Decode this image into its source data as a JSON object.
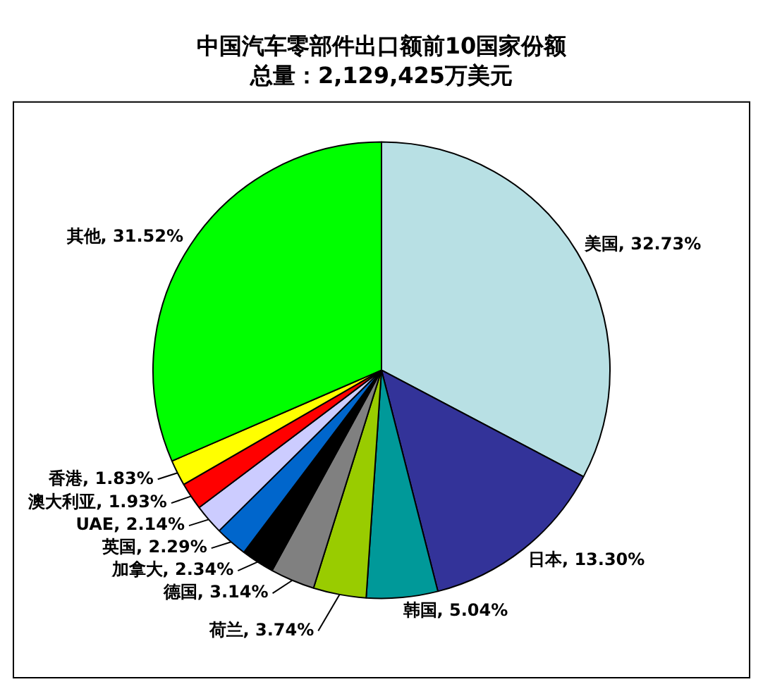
{
  "chart_data": {
    "type": "pie",
    "title": "中国汽车零部件出口额前10国家份额",
    "subtitle": "总量：2,129,425万美元",
    "categories": [
      "美国",
      "日本",
      "韩国",
      "荷兰",
      "德国",
      "加拿大",
      "英国",
      "UAE",
      "澳大利亚",
      "香港",
      "其他"
    ],
    "values": [
      32.73,
      13.3,
      5.04,
      3.74,
      3.14,
      2.34,
      2.29,
      2.14,
      1.93,
      1.83,
      31.52
    ],
    "value_labels": [
      "32.73%",
      "13.30%",
      "5.04%",
      "3.74%",
      "3.14%",
      "2.34%",
      "2.29%",
      "2.14%",
      "1.93%",
      "1.83%",
      "31.52%"
    ],
    "colors": [
      "#b8e0e4",
      "#333399",
      "#009999",
      "#99cc00",
      "#808080",
      "#000000",
      "#0066cc",
      "#ccccff",
      "#ff0000",
      "#ffff00",
      "#00ff00"
    ],
    "legend": false
  }
}
